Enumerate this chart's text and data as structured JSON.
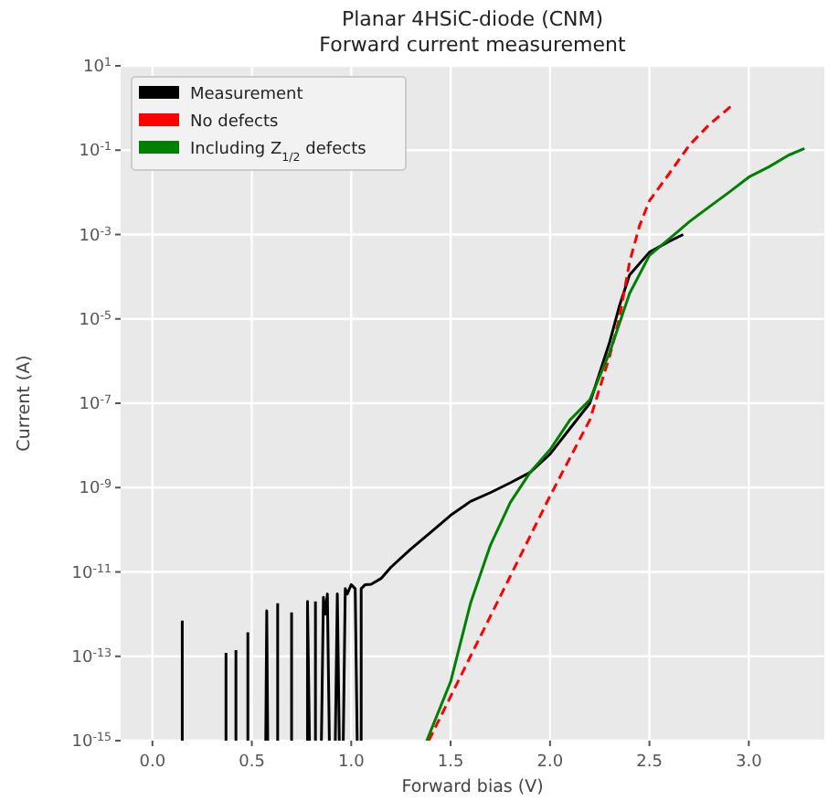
{
  "chart_data": {
    "type": "line",
    "title": "Planar 4HSiC-diode (CNM)",
    "subtitle": "Forward current measurement",
    "xlabel": "Forward bias (V)",
    "ylabel": "Current (A)",
    "log": "y",
    "grid": true,
    "legend": "top left",
    "xlim": [
      -0.16,
      3.38
    ],
    "xticks": [
      {
        "value": 0,
        "label": "0.0"
      },
      0.5,
      {
        "value": 1,
        "label": "1.0"
      },
      1.5,
      {
        "value": 2,
        "label": "2.0"
      },
      2.5,
      {
        "value": 3,
        "label": "3.0"
      }
    ],
    "ylim": [
      1e-15,
      10
    ],
    "yticks": [
      {
        "value": 10,
        "label": "10$^{1}$"
      },
      {
        "value": 0.1,
        "label": "10$^{-1}$"
      },
      {
        "value": 0.001,
        "label": "10$^{-3}$"
      },
      {
        "value": 1e-05,
        "label": "10$^{-5}$"
      },
      {
        "value": 1e-07,
        "label": "10$^{-7}$"
      },
      {
        "value": 1e-09,
        "label": "10$^{-9}$"
      },
      {
        "value": 1e-11,
        "label": "10$^{-11}$"
      },
      {
        "value": 1e-13,
        "label": "10$^{-13}$"
      },
      {
        "value": 1e-15,
        "label": "10$^{-15}$"
      }
    ],
    "series": [
      {
        "name": "Measurement",
        "color": "#000000",
        "line_style": "solid",
        "x": [
          0.15,
          0.15,
          0.2,
          0.37,
          0.37,
          0.4,
          0.42,
          0.42,
          0.45,
          0.48,
          0.48,
          0.5,
          0.57,
          0.575,
          0.58,
          0.6,
          0.63,
          0.63,
          0.65,
          0.7,
          0.7,
          0.74,
          0.78,
          0.78,
          0.79,
          0.8,
          0.82,
          0.82,
          0.84,
          0.85,
          0.86,
          0.87,
          0.88,
          0.89,
          0.9,
          0.92,
          0.93,
          0.94,
          0.95,
          0.96,
          0.97,
          0.98,
          1.0,
          1.02,
          1.03,
          1.04,
          1.05,
          1.05,
          1.07,
          1.1,
          1.15,
          1.2,
          1.3,
          1.4,
          1.5,
          1.6,
          1.7,
          1.8,
          1.9,
          2.0,
          2.1,
          2.2,
          2.3,
          2.35,
          2.4,
          2.5,
          2.6,
          2.67
        ],
        "values": [
          1e-15,
          7e-13,
          null,
          1e-15,
          1.2e-13,
          null,
          1e-15,
          1.4e-13,
          null,
          1e-15,
          3.7e-13,
          null,
          1e-15,
          1.2e-12,
          1e-15,
          null,
          1e-15,
          1.8e-12,
          null,
          1e-15,
          1.1e-12,
          null,
          1e-15,
          2e-12,
          1e-15,
          null,
          1e-15,
          2e-12,
          null,
          1e-15,
          2.5e-12,
          1e-12,
          3e-12,
          1e-15,
          null,
          1e-15,
          3e-12,
          1e-15,
          null,
          1e-15,
          4e-12,
          3e-12,
          5e-12,
          4e-12,
          1e-15,
          null,
          1e-15,
          4e-12,
          5e-12,
          5.1e-12,
          7e-12,
          1.3e-11,
          3.5e-11,
          8.7e-11,
          2.2e-10,
          4.7e-10,
          7.6e-10,
          1.3e-09,
          2.3e-09,
          6.2e-09,
          2.5e-08,
          1e-07,
          2.8e-06,
          2.1e-05,
          0.00011,
          0.00038,
          0.00069,
          0.001
        ]
      },
      {
        "name": "No defects",
        "color": "#ff0000",
        "line_style": "dashed",
        "x": [
          1.39,
          1.6,
          1.8,
          2.0,
          2.2,
          2.3,
          2.35,
          2.4,
          2.45,
          2.5,
          2.6,
          2.7,
          2.8,
          2.92
        ],
        "values": [
          1e-15,
          1e-13,
          7.9e-12,
          6.3e-10,
          4e-08,
          1.3e-06,
          1.1e-05,
          0.00022,
          0.0016,
          0.0063,
          0.028,
          0.13,
          0.4,
          1.2
        ]
      },
      {
        "name": "Including Z$_{1/2}$ defects",
        "color": "#008000",
        "line_style": "solid",
        "x": [
          1.38,
          1.5,
          1.6,
          1.7,
          1.8,
          1.9,
          2.0,
          2.1,
          2.2,
          2.3,
          2.4,
          2.5,
          2.6,
          2.7,
          2.8,
          2.9,
          3.0,
          3.1,
          3.2,
          3.28
        ],
        "values": [
          1e-15,
          2.5e-14,
          1.8e-12,
          4.3e-11,
          4.4e-10,
          2.3e-09,
          7.9e-09,
          4e-08,
          1.2e-07,
          1.6e-06,
          4e-05,
          0.00032,
          0.00079,
          0.002,
          0.0045,
          0.01,
          0.023,
          0.04,
          0.076,
          0.11
        ]
      }
    ]
  }
}
